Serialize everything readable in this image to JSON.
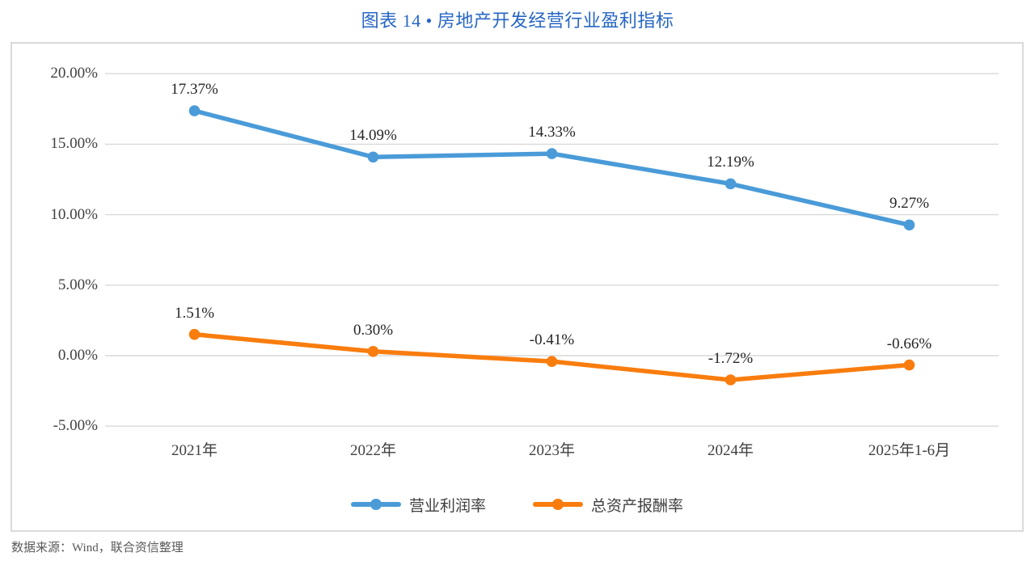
{
  "page": {
    "title": "图表 14 • 房地产开发经营行业盈利指标",
    "title_color": "#2666C5",
    "source_note": "数据来源：Wind，联合资信整理"
  },
  "chart_data": {
    "type": "line",
    "title": "图表 14 • 房地产开发经营行业盈利指标",
    "categories": [
      "2021年",
      "2022年",
      "2023年",
      "2024年",
      "2025年1-6月"
    ],
    "series": [
      {
        "name": "营业利润率",
        "color": "#4A9BD8",
        "values": [
          17.37,
          14.09,
          14.33,
          12.19,
          9.27
        ],
        "point_labels": [
          "17.37%",
          "14.09%",
          "14.33%",
          "12.19%",
          "9.27%"
        ]
      },
      {
        "name": "总资产报酬率",
        "color": "#F97D0E",
        "values": [
          1.51,
          0.3,
          -0.41,
          -1.72,
          -0.66
        ],
        "point_labels": [
          "1.51%",
          "0.30%",
          "-0.41%",
          "-1.72%",
          "-0.66%"
        ]
      }
    ],
    "xlabel": "",
    "ylabel": "",
    "ylim": [
      -5,
      20
    ],
    "yticks": [
      20,
      15,
      10,
      5,
      0,
      -5
    ],
    "ytick_labels": [
      "20.00%",
      "15.00%",
      "10.00%",
      "5.00%",
      "0.00%",
      "-5.00%"
    ],
    "grid": true,
    "grid_color": "#D9D9D9",
    "legend_position": "bottom",
    "legend_entries": [
      "营业利润率",
      "总资产报酬率"
    ]
  }
}
